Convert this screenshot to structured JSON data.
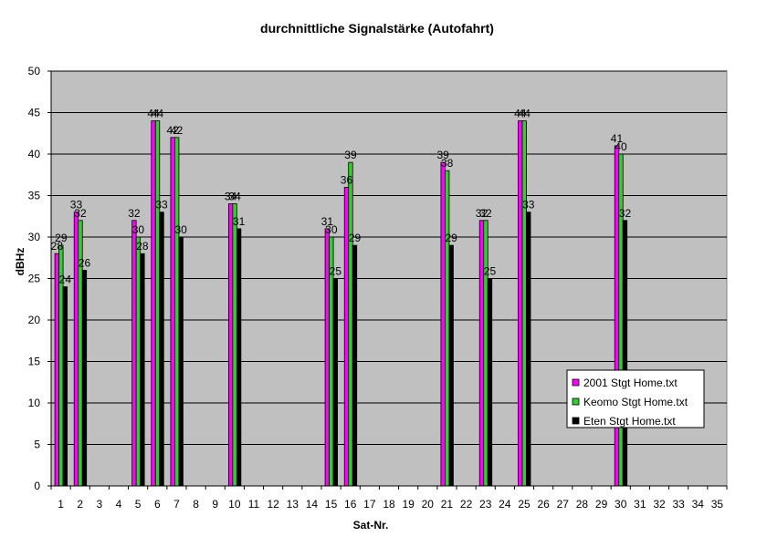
{
  "chart_data": {
    "type": "bar",
    "title": "durchnittliche Signalstärke (Autofahrt)",
    "xlabel": "Sat-Nr.",
    "ylabel": "dBHz",
    "ylim": [
      0,
      50
    ],
    "yticks": [
      0,
      5,
      10,
      15,
      20,
      25,
      30,
      35,
      40,
      45,
      50
    ],
    "grid": true,
    "legend_position": "right",
    "plot_background": "#c0c0c0",
    "categories": [
      "1",
      "2",
      "3",
      "4",
      "5",
      "6",
      "7",
      "8",
      "9",
      "10",
      "11",
      "12",
      "13",
      "14",
      "15",
      "16",
      "17",
      "18",
      "19",
      "20",
      "21",
      "22",
      "23",
      "24",
      "25",
      "26",
      "27",
      "28",
      "29",
      "30",
      "31",
      "32",
      "33",
      "34",
      "35"
    ],
    "series": [
      {
        "name": "2001 Stgt Home.txt",
        "color": "#ff00ff",
        "values": [
          28,
          33,
          null,
          null,
          32,
          44,
          42,
          null,
          null,
          34,
          null,
          null,
          null,
          null,
          31,
          36,
          null,
          null,
          null,
          null,
          39,
          null,
          32,
          null,
          44,
          null,
          null,
          null,
          null,
          41,
          null,
          null,
          null,
          null,
          null
        ]
      },
      {
        "name": "Keomo Stgt Home.txt",
        "color": "#33cc33",
        "values": [
          29,
          32,
          null,
          null,
          30,
          44,
          42,
          null,
          null,
          34,
          null,
          null,
          null,
          null,
          30,
          39,
          null,
          null,
          null,
          null,
          38,
          null,
          32,
          null,
          44,
          null,
          null,
          null,
          null,
          40,
          null,
          null,
          null,
          null,
          null
        ]
      },
      {
        "name": "Eten Stgt Home.txt",
        "color": "#000000",
        "values": [
          24,
          26,
          null,
          null,
          28,
          33,
          30,
          null,
          null,
          31,
          null,
          null,
          null,
          null,
          25,
          29,
          null,
          null,
          null,
          null,
          29,
          null,
          25,
          null,
          33,
          null,
          null,
          null,
          null,
          32,
          null,
          null,
          null,
          null,
          null
        ]
      }
    ]
  }
}
